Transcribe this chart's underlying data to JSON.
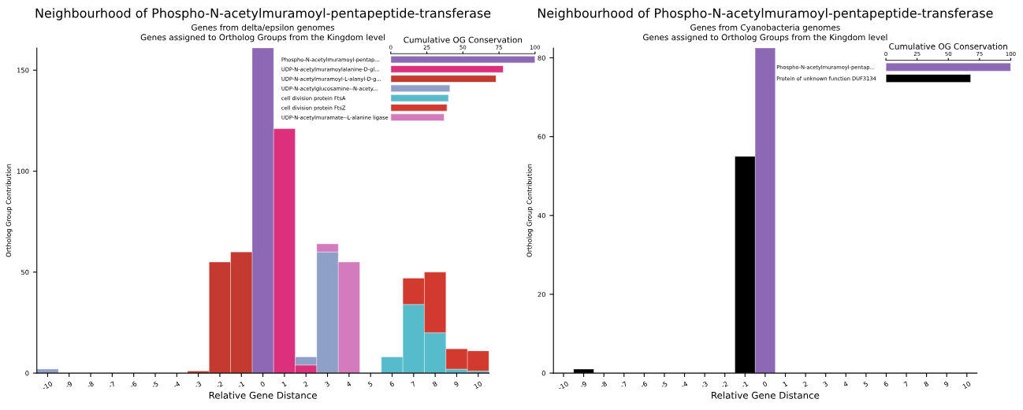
{
  "chart_data": [
    {
      "type": "bar",
      "stacked": true,
      "title": "Neighbourhood of Phospho-N-acetylmuramoyl-pentapeptide-transferase",
      "subtitle": "Genes from delta/epsilon genomes\nGenes assigned to Ortholog Groups from the Kingdom level",
      "xlabel": "Relative Gene Distance",
      "ylabel": "Ortholog Group Contribution",
      "categories": [
        "-10",
        "-9",
        "-8",
        "-7",
        "-6",
        "-5",
        "-4",
        "-3",
        "-2",
        "-1",
        "0",
        "1",
        "2",
        "3",
        "4",
        "5",
        "6",
        "7",
        "8",
        "9",
        "10"
      ],
      "ylim": [
        0,
        161
      ],
      "yticks": [
        0,
        50,
        100,
        150
      ],
      "grid": false,
      "legend": false,
      "series": [
        {
          "color": "#8c68b5",
          "values": [
            null,
            null,
            null,
            null,
            null,
            null,
            null,
            null,
            null,
            null,
            161,
            null,
            null,
            null,
            null,
            null,
            null,
            null,
            null,
            null,
            null
          ]
        },
        {
          "color": "#dc2f7c",
          "values": [
            null,
            null,
            null,
            null,
            null,
            null,
            null,
            null,
            null,
            null,
            null,
            121,
            4,
            null,
            null,
            null,
            null,
            null,
            null,
            null,
            null
          ]
        },
        {
          "color": "#c43a31",
          "values": [
            null,
            null,
            null,
            null,
            null,
            null,
            null,
            1,
            55,
            60,
            null,
            null,
            null,
            null,
            null,
            null,
            null,
            null,
            null,
            null,
            null
          ]
        },
        {
          "color": "#8fa0c8",
          "values": [
            2,
            null,
            null,
            null,
            null,
            null,
            null,
            null,
            null,
            null,
            null,
            null,
            4,
            60,
            null,
            null,
            null,
            null,
            null,
            null,
            null
          ]
        },
        {
          "color": "#56bbcb",
          "values": [
            null,
            null,
            null,
            null,
            null,
            null,
            null,
            null,
            null,
            null,
            null,
            null,
            null,
            null,
            null,
            null,
            8,
            34,
            20,
            2,
            1
          ]
        },
        {
          "color": "#d33a2f",
          "values": [
            null,
            null,
            null,
            null,
            null,
            null,
            null,
            null,
            null,
            null,
            null,
            null,
            null,
            null,
            null,
            null,
            null,
            13,
            30,
            10,
            10
          ]
        },
        {
          "color": "#d47bbe",
          "values": [
            null,
            null,
            null,
            null,
            null,
            null,
            null,
            null,
            null,
            null,
            null,
            null,
            null,
            4,
            55,
            null,
            null,
            null,
            null,
            null,
            null
          ]
        }
      ]
    },
    {
      "type": "bar",
      "orientation": "horizontal",
      "title": "Cumulative OG Conservation",
      "categories": [
        "Phospho-N-acetylmuramoyl-pentap...",
        "UDP-N-acetylmuramoylalanine-D-gl...",
        "UDP-N-acetylmuramoyl-L-alanyl-D-g...",
        "UDP-N-acetylglucosamine--N-acety...",
        "cell division protein FtsA",
        "cell division protein FtsZ",
        "UDP-N-acetylmuramate--L-alanine ligase"
      ],
      "values": [
        100,
        78,
        73,
        41,
        40,
        39,
        37
      ],
      "colors": [
        "#8c68b5",
        "#dc2f7c",
        "#c43a31",
        "#8fa0c8",
        "#56bbcb",
        "#d33a2f",
        "#d47bbe"
      ],
      "xlim": [
        0,
        100
      ],
      "xticks": [
        0,
        25,
        50,
        75,
        100
      ],
      "grid": false,
      "legend": false
    },
    {
      "type": "bar",
      "stacked": true,
      "title": "Neighbourhood of Phospho-N-acetylmuramoyl-pentapeptide-transferase",
      "subtitle": "Genes from Cyanobacteria genomes\nGenes assigned to Ortholog Groups from the Kingdom level",
      "xlabel": "Relative Gene Distance",
      "ylabel": "Ortholog Group Contribution",
      "categories": [
        "-10",
        "-9",
        "-8",
        "-7",
        "-6",
        "-5",
        "-4",
        "-3",
        "-2",
        "-1",
        "0",
        "1",
        "2",
        "3",
        "4",
        "5",
        "6",
        "7",
        "8",
        "9",
        "10"
      ],
      "ylim": [
        0,
        82.5
      ],
      "yticks": [
        0,
        20,
        40,
        60,
        80
      ],
      "grid": false,
      "legend": false,
      "series": [
        {
          "color": "#8c68b5",
          "values": [
            null,
            null,
            null,
            null,
            null,
            null,
            null,
            null,
            null,
            null,
            82.5,
            null,
            null,
            null,
            null,
            null,
            null,
            null,
            null,
            null,
            null
          ]
        },
        {
          "color": "#000000",
          "values": [
            null,
            1,
            null,
            null,
            null,
            null,
            null,
            null,
            null,
            55,
            null,
            null,
            null,
            null,
            null,
            null,
            null,
            null,
            null,
            null,
            null
          ]
        }
      ]
    },
    {
      "type": "bar",
      "orientation": "horizontal",
      "title": "Cumulative OG Conservation",
      "categories": [
        "Phospho-N-acetylmuramoyl-pentap...",
        "Protein of unknown function DUF3134"
      ],
      "values": [
        100,
        68
      ],
      "colors": [
        "#8c68b5",
        "#000000"
      ],
      "xlim": [
        0,
        100
      ],
      "xticks": [
        0,
        25,
        50,
        75,
        100
      ],
      "grid": false,
      "legend": false
    }
  ]
}
